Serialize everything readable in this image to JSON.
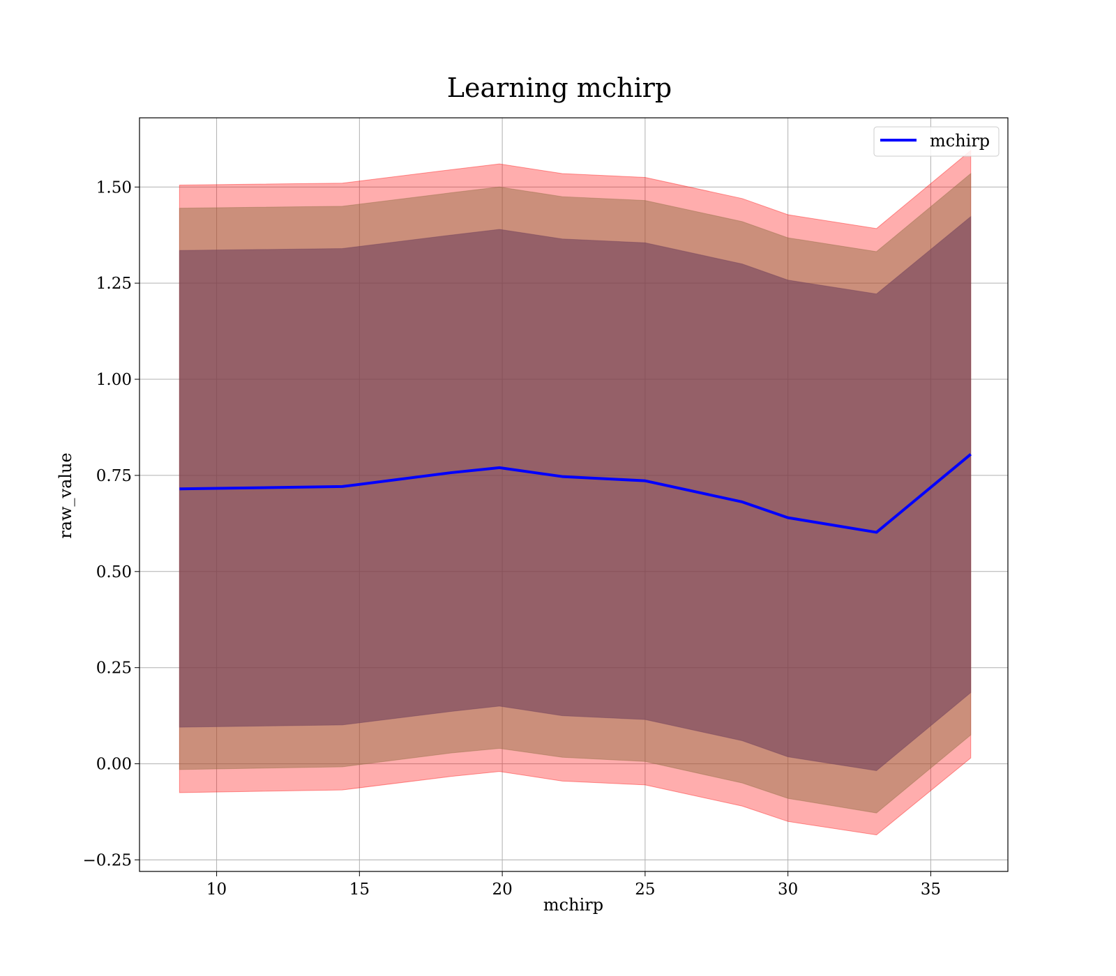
{
  "chart_data": {
    "type": "line",
    "title": "Learning mchirp",
    "xlabel": "mchirp",
    "ylabel": "raw_value",
    "xlim": [
      7.3,
      37.7
    ],
    "ylim": [
      -0.28,
      1.68
    ],
    "xticks": [
      10,
      15,
      20,
      25,
      30,
      35
    ],
    "yticks": [
      -0.25,
      0.0,
      0.25,
      0.5,
      0.75,
      1.0,
      1.25,
      1.5
    ],
    "ytick_labels": [
      "−0.25",
      "0.00",
      "0.25",
      "0.50",
      "0.75",
      "1.00",
      "1.25",
      "1.50"
    ],
    "grid": true,
    "legend": {
      "location": "upper right",
      "entries": [
        {
          "label": "mchirp",
          "color": "#0000ff"
        }
      ]
    },
    "x": [
      8.7,
      14.4,
      18.2,
      19.9,
      22.1,
      25.0,
      28.4,
      30.0,
      33.1,
      36.4
    ],
    "series": [
      {
        "name": "mchirp",
        "color": "#0000ff",
        "values": [
          0.715,
          0.721,
          0.757,
          0.77,
          0.747,
          0.736,
          0.681,
          0.64,
          0.602,
          0.805
        ]
      }
    ],
    "bands": [
      {
        "color": "#ff0000",
        "opacity": 0.32,
        "lower": [
          -0.075,
          -0.068,
          -0.033,
          -0.02,
          -0.045,
          -0.055,
          -0.11,
          -0.15,
          -0.185,
          0.015
        ],
        "upper": [
          1.505,
          1.51,
          1.545,
          1.56,
          1.535,
          1.525,
          1.47,
          1.428,
          1.392,
          1.595
        ]
      },
      {
        "color": "#8b6b3e",
        "opacity": 0.45,
        "lower": [
          -0.015,
          -0.008,
          0.028,
          0.04,
          0.017,
          0.006,
          -0.05,
          -0.09,
          -0.128,
          0.075
        ],
        "upper": [
          1.445,
          1.45,
          1.485,
          1.5,
          1.475,
          1.465,
          1.41,
          1.368,
          1.332,
          1.535
        ]
      },
      {
        "color": "#6a3a5a",
        "opacity": 0.55,
        "lower": [
          0.095,
          0.101,
          0.136,
          0.15,
          0.125,
          0.115,
          0.06,
          0.018,
          -0.018,
          0.185
        ],
        "upper": [
          1.335,
          1.34,
          1.375,
          1.39,
          1.365,
          1.355,
          1.3,
          1.258,
          1.222,
          1.423
        ]
      }
    ]
  }
}
